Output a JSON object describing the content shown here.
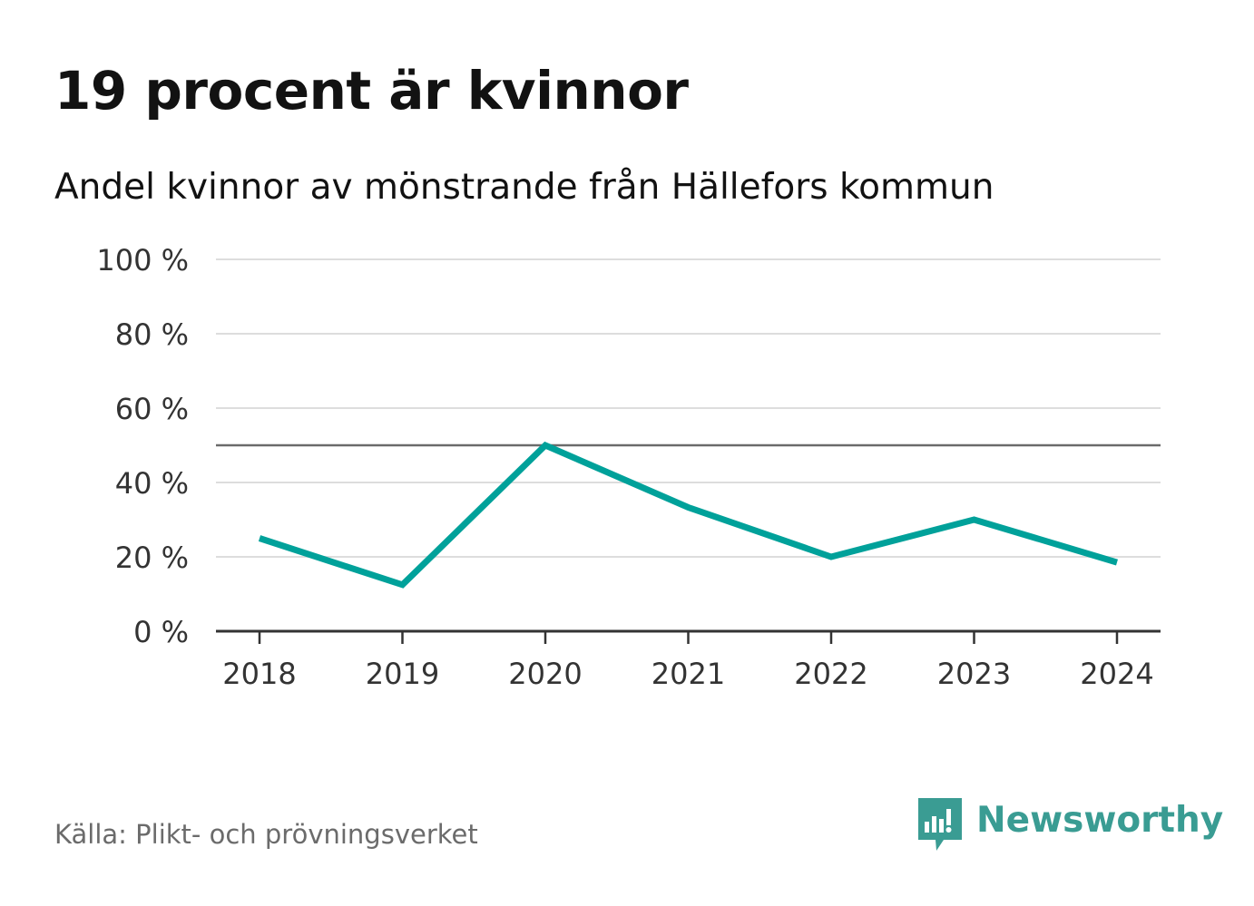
{
  "header": {
    "title": "19 procent är kvinnor",
    "subtitle": "Andel kvinnor av mönstrande från Hällefors kommun"
  },
  "chart_data": {
    "type": "line",
    "title": "19 procent är kvinnor",
    "subtitle": "Andel kvinnor av mönstrande från Hällefors kommun",
    "xlabel": "",
    "ylabel": "",
    "x": [
      "2018",
      "2019",
      "2020",
      "2021",
      "2022",
      "2023",
      "2024"
    ],
    "series": [
      {
        "name": "Andel kvinnor",
        "values": [
          25,
          12.5,
          50,
          33.3,
          20,
          30,
          18.5
        ],
        "color": "#00a19a"
      }
    ],
    "ylim": [
      0,
      100
    ],
    "yticks": [
      0,
      20,
      40,
      60,
      80,
      100
    ],
    "ytick_labels": [
      "0 %",
      "20 %",
      "40 %",
      "60 %",
      "80 %",
      "100 %"
    ],
    "reference_line": {
      "value": 50,
      "color": "#6b6b6b"
    },
    "grid": true,
    "grid_color": "#dddddd",
    "axis_color": "#333333",
    "legend": "none"
  },
  "footer": {
    "source": "Källa: Plikt- och prövningsverket",
    "brand_name": "Newsworthy",
    "brand_icon": "newsworthy-logo-icon",
    "brand_color": "#3a9c93"
  }
}
